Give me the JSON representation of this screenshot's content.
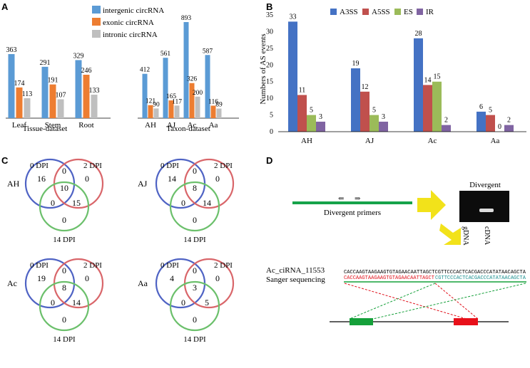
{
  "panels": {
    "a": "A",
    "b": "B",
    "c": "C",
    "d": "D"
  },
  "colors": {
    "intergenic": "#5b9bd5",
    "exonic": "#ed7d31",
    "intronic": "#bfbfbf",
    "A3SS": "#4472c4",
    "A5SS": "#c0504d",
    "ES": "#9bbb59",
    "IR": "#8064a2",
    "venn_0dpi": "#4f63c4",
    "venn_2dpi": "#d9666a",
    "venn_14dpi": "#6cc06c",
    "arrow": "#f2e21a",
    "seq_black": "#000000",
    "seq_red": "#e0101a",
    "seq_teal": "#1a8f8f",
    "primer_line": "#16a34a",
    "exon_left": "#15a03a",
    "exon_right": "#e8101a"
  },
  "chart_data": [
    {
      "id": "circRNA_counts",
      "type": "bar",
      "legend": [
        "intergenic circRNA",
        "exonic circRNA",
        "intronic circRNA"
      ],
      "groups": [
        {
          "title": "Tissue-dataset",
          "categories": [
            "Leaf",
            "Stem",
            "Root"
          ],
          "series": [
            {
              "name": "intergenic circRNA",
              "values": [
                363,
                291,
                329
              ]
            },
            {
              "name": "exonic circRNA",
              "values": [
                174,
                191,
                246
              ]
            },
            {
              "name": "intronic circRNA",
              "values": [
                113,
                107,
                133
              ]
            }
          ]
        },
        {
          "title": "Taxon-dataset",
          "categories": [
            "AH",
            "AJ",
            "Ac",
            "Aa"
          ],
          "series": [
            {
              "name": "intergenic circRNA",
              "values": [
                412,
                561,
                893,
                587
              ]
            },
            {
              "name": "exonic circRNA",
              "values": [
                121,
                165,
                326,
                116
              ]
            },
            {
              "name": "intronic circRNA",
              "values": [
                90,
                117,
                200,
                89
              ]
            }
          ]
        }
      ]
    },
    {
      "id": "AS_events",
      "type": "bar",
      "ylabel": "Numbers of AS events",
      "ylim": [
        0,
        35
      ],
      "yticks": [
        "0",
        "5",
        "10",
        "15",
        "20",
        "25",
        "30",
        "35"
      ],
      "categories": [
        "AH",
        "AJ",
        "Ac",
        "Aa"
      ],
      "series": [
        {
          "name": "A3SS",
          "values": [
            33,
            19,
            28,
            6
          ]
        },
        {
          "name": "A5SS",
          "values": [
            11,
            12,
            14,
            5
          ]
        },
        {
          "name": "ES",
          "values": [
            5,
            5,
            15,
            0
          ]
        },
        {
          "name": "IR",
          "values": [
            3,
            3,
            2,
            2
          ]
        }
      ]
    }
  ],
  "venn": [
    {
      "taxon": "AH",
      "set_labels": [
        "0 DPI",
        "2 DPI",
        "14 DPI"
      ],
      "values": [
        "16",
        "0",
        "0",
        "10",
        "0",
        "15",
        "0"
      ]
    },
    {
      "taxon": "AJ",
      "set_labels": [
        "0 DPI",
        "2 DPI",
        "14 DPI"
      ],
      "values": [
        "14",
        "0",
        "0",
        "8",
        "0",
        "14",
        "0"
      ]
    },
    {
      "taxon": "Ac",
      "set_labels": [
        "0 DPI",
        "2 DPI",
        "14 DPI"
      ],
      "values": [
        "19",
        "0",
        "0",
        "8",
        "0",
        "14",
        "0"
      ]
    },
    {
      "taxon": "Aa",
      "set_labels": [
        "0 DPI",
        "2 DPI",
        "14 DPI"
      ],
      "values": [
        "4",
        "0",
        "0",
        "3",
        "0",
        "5",
        "0"
      ]
    }
  ],
  "validation": {
    "primer_label": "Divergent primers",
    "primer_left_glyph": "⇐",
    "primer_right_glyph": "⇒",
    "gel_title": "Divergent",
    "lane_labels": [
      "gDNA",
      "cDNA"
    ],
    "circ_name": "Ac_ciRNA_11553",
    "sanger_label": "Sanger sequencing",
    "seq_top": "CACCAAGTAAGAAGTGTAGAACAATTAGCTCGTTCCCACTCACGACCCATATAACAGCTA",
    "seq_red": "CACCAAGTAAGAAGTGTAGAACAATTAGCT",
    "seq_teal": "CGTTCCCACTCACGACCCATATAACAGCTA"
  }
}
